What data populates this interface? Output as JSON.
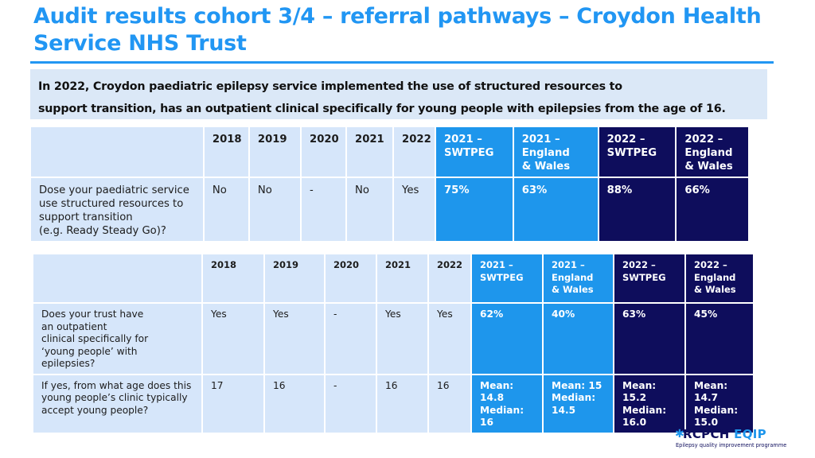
{
  "title": "Audit results cohort 3/4 – referral pathways – Croydon Health Service NHS Trust",
  "summary": {
    "line1": "In 2022, Croydon paediatric epilepsy service implemented the use of structured resources to",
    "line2": "support transition, has an outpatient clinical specifically for young people with epilepsies from the age of 16."
  },
  "table1": {
    "headers": [
      "2018",
      "2019",
      "2020",
      "2021",
      "2022",
      "2021 –\nSWTPEG",
      "2021 –\nEngland\n& Wales",
      "2022 –\nSWTPEG",
      "2022 –\nEngland\n& Wales"
    ],
    "rows": [
      {
        "label": "Dose your paediatric service\nuse structured resources to\nsupport transition\n(e.g. Ready Steady Go)?",
        "values": [
          "No",
          "No",
          "-",
          "No",
          "Yes",
          "75%",
          "63%",
          "88%",
          "66%"
        ]
      }
    ]
  },
  "table2": {
    "headers": [
      "2018",
      "2019",
      "2020",
      "2021",
      "2022",
      "2021 –\nSWTPEG",
      "2021 –\nEngland\n& Wales",
      "2022 –\nSWTPEG",
      "2022 –\nEngland\n& Wales"
    ],
    "rows": [
      {
        "label": "Does your trust have\nan outpatient\nclinical specifically for\n‘young people’ with\nepilepsies?",
        "values": [
          "Yes",
          "Yes",
          "-",
          "Yes",
          "Yes",
          "62%",
          "40%",
          "63%",
          "45%"
        ]
      },
      {
        "label": "If yes, from what age does this\nyoung people’s clinic typically\naccept young people?",
        "values": [
          "17",
          "16",
          "-",
          "16",
          "16",
          "Mean: 14.8\nMedian: 16",
          "Mean: 15\nMedian:\n14.5",
          "Mean: 15.2\nMedian:\n16.0",
          "Mean: 14.7\nMedian:\n15.0"
        ]
      }
    ]
  },
  "logo": {
    "name": "RCPCH",
    "product": "EQIP",
    "subtitle": "Epilepsy quality improvement programme"
  },
  "colors": {
    "title": "#2196f3",
    "light": "#d6e6fa",
    "medium": "#1e96ec",
    "dark": "#0e0d5c",
    "summary_bg": "#dbe8f7"
  }
}
